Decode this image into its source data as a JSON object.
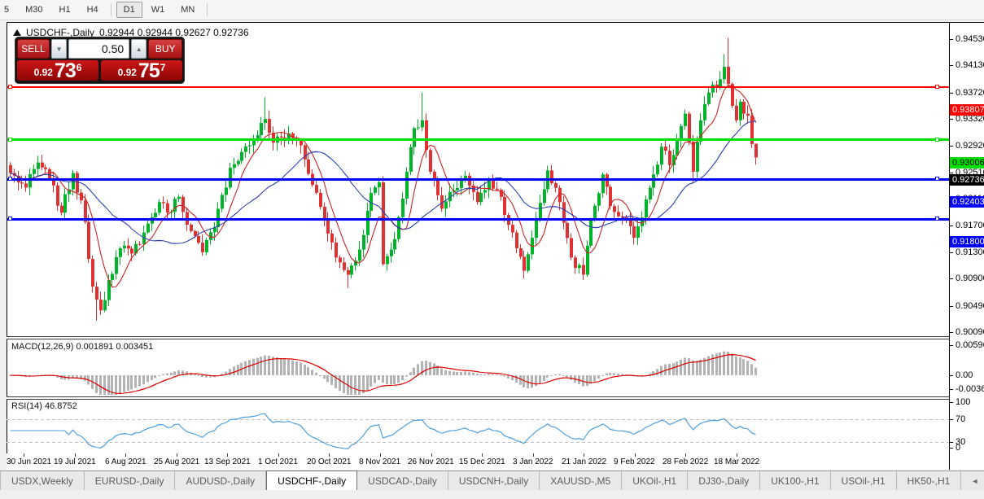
{
  "toolbar": {
    "timeframes": [
      {
        "label": "5",
        "active": false
      },
      {
        "label": "M30",
        "active": false
      },
      {
        "label": "H1",
        "active": false
      },
      {
        "label": "H4",
        "active": false
      },
      {
        "label": "D1",
        "active": true
      },
      {
        "label": "W1",
        "active": false
      },
      {
        "label": "MN",
        "active": false
      }
    ]
  },
  "chart_header": {
    "symbol": "USDCHF-,Daily",
    "ohlc_text": "0.92944 0.92944 0.92627 0.92736"
  },
  "trade_panel": {
    "sell_label": "SELL",
    "buy_label": "BUY",
    "volume": "0.50",
    "sell_price": {
      "prefix": "0.92",
      "big": "73",
      "sup": "6"
    },
    "buy_price": {
      "prefix": "0.92",
      "big": "75",
      "sup": "7"
    }
  },
  "price_axis": {
    "ticks": [
      "0.94530",
      "0.94130",
      "0.93720",
      "0.93320",
      "0.92920",
      "0.92510",
      "0.92110",
      "0.91700",
      "0.91300",
      "0.90900",
      "0.90490",
      "0.90090"
    ],
    "badges": [
      {
        "text": "0.93807",
        "bg": "#ff0000",
        "fg": "#ffffff"
      },
      {
        "text": "0.93006",
        "bg": "#00e000",
        "fg": "#000000"
      },
      {
        "text": "0.92736",
        "bg": "#000000",
        "fg": "#ffffff"
      },
      {
        "text": "0.92403",
        "bg": "#0000ff",
        "fg": "#ffffff"
      },
      {
        "text": "0.91800",
        "bg": "#0000ff",
        "fg": "#ffffff"
      }
    ]
  },
  "macd_panel": {
    "title": "MACD(12,26,9) 0.001891 0.003451",
    "axis_labels": [
      {
        "text": "0.005963",
        "value": 0.005963
      },
      {
        "text": "0.00",
        "value": 0.0
      },
      {
        "text": "-0.003664",
        "value": -0.003664
      }
    ]
  },
  "rsi_panel": {
    "title": "RSI(14) 46.8752",
    "axis_labels": [
      {
        "text": "100",
        "value": 100
      },
      {
        "text": "70",
        "value": 70
      },
      {
        "text": "30",
        "value": 30
      },
      {
        "text": "0",
        "value": 0
      }
    ]
  },
  "date_axis": {
    "labels": [
      "30 Jun 2021",
      "19 Jul 2021",
      "6 Aug 2021",
      "25 Aug 2021",
      "13 Sep 2021",
      "1 Oct 2021",
      "20 Oct 2021",
      "8 Nov 2021",
      "26 Nov 2021",
      "15 Dec 2021",
      "3 Jan 2022",
      "21 Jan 2022",
      "9 Feb 2022",
      "28 Feb 2022",
      "18 Mar 2022"
    ]
  },
  "tab_bar": {
    "tabs": [
      "USDX,Weekly",
      "EURUSD-,Daily",
      "AUDUSD-,Daily",
      "USDCHF-,Daily",
      "USDCAD-,Daily",
      "USDCNH-,Daily",
      "XAUUSD-,M5",
      "UKOil-,H1",
      "DJ30-,Daily",
      "UK100-,H1",
      "USOil-,H1",
      "HK50-,H1"
    ],
    "active": "USDCHF-,Daily",
    "scroll_left": "◄",
    "scroll_right": "►"
  },
  "chart_data": {
    "type": "candlestick",
    "symbol": "USDCHF-",
    "timeframe": "Daily",
    "title": "USDCHF-,Daily",
    "current_ohlc": {
      "open": 0.92944,
      "high": 0.92944,
      "low": 0.92627,
      "close": 0.92736
    },
    "horizontal_lines": [
      {
        "price": 0.93807,
        "color": "#ff0000",
        "thickness": 2
      },
      {
        "price": 0.93006,
        "color": "#00e000",
        "thickness": 3
      },
      {
        "price": 0.92403,
        "color": "#0000ff",
        "thickness": 3
      },
      {
        "price": 0.918,
        "color": "#0000ff",
        "thickness": 3
      }
    ],
    "price_ticks": [
      0.9453,
      0.9413,
      0.9372,
      0.9332,
      0.9292,
      0.9251,
      0.9211,
      0.917,
      0.913,
      0.909,
      0.9049,
      0.9009
    ],
    "x_labels": [
      "30 Jun 2021",
      "19 Jul 2021",
      "6 Aug 2021",
      "25 Aug 2021",
      "13 Sep 2021",
      "1 Oct 2021",
      "20 Oct 2021",
      "8 Nov 2021",
      "26 Nov 2021",
      "15 Dec 2021",
      "3 Jan 2022",
      "21 Jan 2022",
      "9 Feb 2022",
      "28 Feb 2022",
      "18 Mar 2022"
    ],
    "candles_count": 191,
    "close_anchors": [
      [
        0,
        0.925
      ],
      [
        4,
        0.9228
      ],
      [
        7,
        0.9266
      ],
      [
        10,
        0.9242
      ],
      [
        13,
        0.919
      ],
      [
        16,
        0.925
      ],
      [
        19,
        0.9176
      ],
      [
        21,
        0.9078
      ],
      [
        23,
        0.9042
      ],
      [
        25,
        0.9088
      ],
      [
        28,
        0.9136
      ],
      [
        31,
        0.9128
      ],
      [
        34,
        0.916
      ],
      [
        38,
        0.9206
      ],
      [
        40,
        0.919
      ],
      [
        43,
        0.9214
      ],
      [
        46,
        0.9162
      ],
      [
        49,
        0.913
      ],
      [
        52,
        0.9168
      ],
      [
        56,
        0.9258
      ],
      [
        59,
        0.9282
      ],
      [
        62,
        0.93
      ],
      [
        65,
        0.9332
      ],
      [
        67,
        0.9296
      ],
      [
        71,
        0.931
      ],
      [
        74,
        0.9292
      ],
      [
        77,
        0.9232
      ],
      [
        80,
        0.918
      ],
      [
        83,
        0.9122
      ],
      [
        86,
        0.9096
      ],
      [
        89,
        0.9134
      ],
      [
        92,
        0.922
      ],
      [
        94,
        0.9236
      ],
      [
        95,
        0.9112
      ],
      [
        98,
        0.915
      ],
      [
        101,
        0.9252
      ],
      [
        103,
        0.9318
      ],
      [
        105,
        0.933
      ],
      [
        107,
        0.9252
      ],
      [
        110,
        0.9196
      ],
      [
        113,
        0.9224
      ],
      [
        116,
        0.9246
      ],
      [
        119,
        0.9206
      ],
      [
        122,
        0.924
      ],
      [
        125,
        0.9214
      ],
      [
        129,
        0.9136
      ],
      [
        131,
        0.9102
      ],
      [
        134,
        0.918
      ],
      [
        137,
        0.9254
      ],
      [
        140,
        0.9206
      ],
      [
        143,
        0.9122
      ],
      [
        146,
        0.9096
      ],
      [
        148,
        0.9178
      ],
      [
        151,
        0.9248
      ],
      [
        153,
        0.92
      ],
      [
        157,
        0.9178
      ],
      [
        159,
        0.9152
      ],
      [
        162,
        0.921
      ],
      [
        164,
        0.9248
      ],
      [
        166,
        0.929
      ],
      [
        168,
        0.9262
      ],
      [
        170,
        0.93
      ],
      [
        172,
        0.934
      ],
      [
        174,
        0.9252
      ],
      [
        176,
        0.933
      ],
      [
        178,
        0.9372
      ],
      [
        180,
        0.9381
      ],
      [
        182,
        0.9411
      ],
      [
        183,
        0.9385
      ],
      [
        184,
        0.9352
      ],
      [
        185,
        0.933
      ],
      [
        186,
        0.9358
      ],
      [
        187,
        0.934
      ],
      [
        188,
        0.9337
      ],
      [
        189,
        0.9294
      ],
      [
        190,
        0.92736
      ]
    ],
    "high_overrides": {
      "65": 0.9365,
      "105": 0.9372,
      "182": 0.943,
      "183": 0.9455
    },
    "low_overrides": {
      "22": 0.9026,
      "86": 0.9076,
      "131": 0.909,
      "146": 0.9088,
      "174": 0.9235
    },
    "indicators": {
      "macd": {
        "params": [
          12,
          26,
          9
        ],
        "current_main": 0.001891,
        "current_signal": 0.003451,
        "axis_max": 0.005963,
        "axis_min": -0.003664
      },
      "rsi": {
        "period": 14,
        "current": 46.8752,
        "levels": [
          70,
          30
        ]
      }
    },
    "colors": {
      "bull": "#00b42a",
      "bear": "#e03232",
      "ma_fast": "#cc2222",
      "ma_slow": "#2a3fb0",
      "macd_hist": "#b3b3b3",
      "macd_signal": "#dd0000",
      "rsi": "#4f9fe0",
      "level_red": "#ff0000",
      "level_green": "#00e000",
      "level_blue": "#0000ff"
    }
  }
}
